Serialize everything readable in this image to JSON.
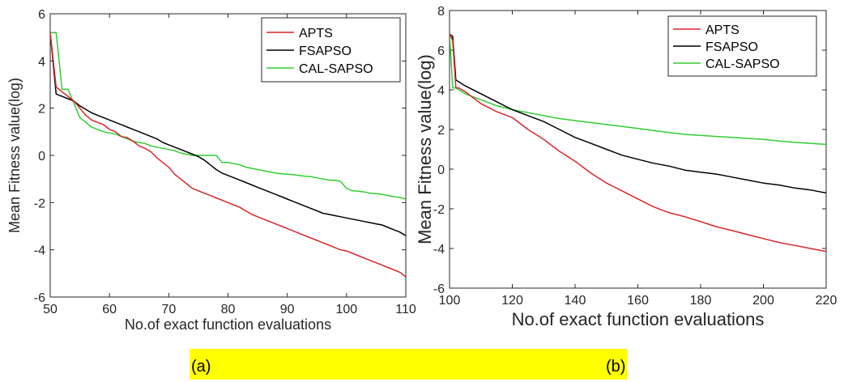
{
  "chart_data": [
    {
      "type": "line",
      "title": "",
      "xlabel": "No.of exact function evaluations",
      "ylabel": "Mean Fitness value(log)",
      "xlim": [
        50,
        110
      ],
      "ylim": [
        -6,
        6
      ],
      "xticks": [
        50,
        60,
        70,
        80,
        90,
        100,
        110
      ],
      "yticks": [
        -6,
        -4,
        -2,
        0,
        2,
        4,
        6
      ],
      "xtick_labels": [
        "50",
        "60",
        "70",
        "80",
        "90",
        "100",
        "110"
      ],
      "ytick_labels": [
        "-6",
        "-4",
        "-2",
        "0",
        "2",
        "4",
        "6"
      ],
      "grid": false,
      "legend_position": "top-right",
      "series": [
        {
          "name": "APTS",
          "color": "#d62728",
          "x": [
            50,
            51,
            52,
            53,
            54,
            55,
            56,
            57,
            58,
            59,
            60,
            61,
            62,
            63,
            64,
            65,
            66,
            67,
            68,
            69,
            70,
            71,
            72,
            73,
            74,
            75,
            76,
            77,
            78,
            79,
            80,
            81,
            82,
            83,
            84,
            85,
            86,
            87,
            88,
            89,
            90,
            91,
            92,
            93,
            94,
            95,
            96,
            97,
            98,
            99,
            100,
            101,
            102,
            103,
            104,
            105,
            106,
            107,
            108,
            109,
            110
          ],
          "y": [
            5.2,
            2.9,
            2.7,
            2.5,
            2.3,
            2.0,
            1.7,
            1.5,
            1.4,
            1.3,
            1.1,
            1.0,
            0.8,
            0.75,
            0.6,
            0.4,
            0.3,
            0.15,
            -0.1,
            -0.3,
            -0.5,
            -0.8,
            -1.0,
            -1.2,
            -1.4,
            -1.5,
            -1.6,
            -1.7,
            -1.8,
            -1.9,
            -2.0,
            -2.1,
            -2.2,
            -2.35,
            -2.5,
            -2.6,
            -2.7,
            -2.8,
            -2.9,
            -3.0,
            -3.1,
            -3.2,
            -3.3,
            -3.4,
            -3.5,
            -3.6,
            -3.7,
            -3.8,
            -3.9,
            -4.0,
            -4.05,
            -4.15,
            -4.25,
            -4.35,
            -4.45,
            -4.55,
            -4.65,
            -4.75,
            -4.85,
            -4.95,
            -5.15
          ]
        },
        {
          "name": "FSAPSO",
          "color": "#000000",
          "x": [
            50,
            51,
            52,
            53,
            54,
            55,
            56,
            57,
            58,
            59,
            60,
            61,
            62,
            63,
            64,
            65,
            66,
            67,
            68,
            69,
            70,
            71,
            72,
            73,
            74,
            75,
            76,
            77,
            78,
            79,
            80,
            81,
            82,
            83,
            84,
            85,
            86,
            87,
            88,
            89,
            90,
            91,
            92,
            93,
            94,
            95,
            96,
            97,
            98,
            99,
            100,
            101,
            102,
            103,
            104,
            105,
            106,
            107,
            108,
            109,
            110
          ],
          "y": [
            5.2,
            2.6,
            2.5,
            2.4,
            2.3,
            2.1,
            1.95,
            1.8,
            1.7,
            1.6,
            1.5,
            1.4,
            1.3,
            1.2,
            1.1,
            1.0,
            0.9,
            0.8,
            0.7,
            0.55,
            0.45,
            0.35,
            0.25,
            0.15,
            0.05,
            -0.05,
            -0.2,
            -0.4,
            -0.6,
            -0.75,
            -0.85,
            -0.95,
            -1.05,
            -1.15,
            -1.25,
            -1.35,
            -1.45,
            -1.55,
            -1.65,
            -1.75,
            -1.85,
            -1.95,
            -2.05,
            -2.15,
            -2.25,
            -2.35,
            -2.45,
            -2.5,
            -2.55,
            -2.6,
            -2.65,
            -2.7,
            -2.75,
            -2.8,
            -2.85,
            -2.9,
            -2.95,
            -3.05,
            -3.15,
            -3.25,
            -3.4
          ]
        },
        {
          "name": "CAL-SAPSO",
          "color": "#33cc33",
          "x": [
            50,
            51,
            52,
            53,
            54,
            55,
            56,
            57,
            58,
            59,
            60,
            61,
            62,
            63,
            64,
            65,
            66,
            67,
            68,
            69,
            70,
            71,
            72,
            73,
            74,
            75,
            76,
            77,
            78,
            79,
            80,
            81,
            82,
            83,
            84,
            85,
            86,
            87,
            88,
            89,
            90,
            91,
            92,
            93,
            94,
            95,
            96,
            97,
            98,
            99,
            100,
            101,
            102,
            103,
            104,
            105,
            106,
            107,
            108,
            109,
            110
          ],
          "y": [
            5.2,
            5.2,
            2.8,
            2.8,
            2.2,
            1.6,
            1.4,
            1.2,
            1.1,
            1.0,
            0.95,
            0.9,
            0.8,
            0.7,
            0.6,
            0.55,
            0.5,
            0.4,
            0.35,
            0.3,
            0.25,
            0.2,
            0.1,
            0.05,
            0.0,
            0.0,
            0.0,
            0.0,
            0.0,
            -0.3,
            -0.3,
            -0.35,
            -0.4,
            -0.5,
            -0.55,
            -0.6,
            -0.65,
            -0.7,
            -0.75,
            -0.78,
            -0.8,
            -0.82,
            -0.85,
            -0.88,
            -0.9,
            -0.95,
            -1.0,
            -1.05,
            -1.05,
            -1.1,
            -1.4,
            -1.5,
            -1.52,
            -1.55,
            -1.6,
            -1.62,
            -1.65,
            -1.7,
            -1.75,
            -1.78,
            -1.85
          ]
        }
      ]
    },
    {
      "type": "line",
      "title": "",
      "xlabel": "No.of exact function evaluations",
      "ylabel": "Mean Fitness value(log)",
      "xlim": [
        100,
        220
      ],
      "ylim": [
        -6,
        8
      ],
      "xticks": [
        100,
        120,
        140,
        160,
        180,
        200,
        220
      ],
      "yticks": [
        -6,
        -4,
        -2,
        0,
        2,
        4,
        6,
        8
      ],
      "xtick_labels": [
        "100",
        "120",
        "140",
        "160",
        "180",
        "200",
        "220"
      ],
      "ytick_labels": [
        "-6",
        "-4",
        "-2",
        "0",
        "2",
        "4",
        "6",
        "8"
      ],
      "grid": false,
      "legend_position": "top-right",
      "series": [
        {
          "name": "APTS",
          "color": "#d62728",
          "x": [
            100,
            101,
            102,
            103,
            105,
            110,
            115,
            120,
            125,
            130,
            135,
            140,
            145,
            150,
            155,
            160,
            165,
            170,
            175,
            180,
            185,
            190,
            195,
            200,
            205,
            210,
            215,
            220
          ],
          "y": [
            6.8,
            6.5,
            4.1,
            4.1,
            3.9,
            3.3,
            2.9,
            2.6,
            2.0,
            1.5,
            0.9,
            0.4,
            -0.2,
            -0.7,
            -1.1,
            -1.5,
            -1.9,
            -2.2,
            -2.4,
            -2.65,
            -2.9,
            -3.1,
            -3.3,
            -3.5,
            -3.7,
            -3.85,
            -4.0,
            -4.15
          ]
        },
        {
          "name": "FSAPSO",
          "color": "#000000",
          "x": [
            100,
            101,
            102,
            103,
            105,
            110,
            115,
            120,
            125,
            130,
            135,
            140,
            145,
            150,
            155,
            160,
            165,
            170,
            175,
            180,
            185,
            190,
            195,
            200,
            205,
            210,
            215,
            220
          ],
          "y": [
            6.8,
            6.7,
            4.5,
            4.4,
            4.2,
            3.8,
            3.4,
            3.0,
            2.7,
            2.4,
            2.0,
            1.6,
            1.3,
            1.0,
            0.7,
            0.5,
            0.3,
            0.15,
            -0.05,
            -0.15,
            -0.25,
            -0.4,
            -0.55,
            -0.7,
            -0.8,
            -0.95,
            -1.05,
            -1.2
          ]
        },
        {
          "name": "CAL-SAPSO",
          "color": "#33cc33",
          "x": [
            100,
            101,
            102,
            103,
            105,
            110,
            115,
            120,
            125,
            130,
            135,
            140,
            145,
            150,
            155,
            160,
            165,
            170,
            175,
            180,
            185,
            190,
            195,
            200,
            205,
            210,
            215,
            220
          ],
          "y": [
            6.8,
            4.1,
            4.1,
            4.0,
            3.8,
            3.5,
            3.2,
            3.0,
            2.85,
            2.7,
            2.55,
            2.45,
            2.35,
            2.25,
            2.15,
            2.05,
            1.95,
            1.85,
            1.75,
            1.7,
            1.65,
            1.6,
            1.55,
            1.5,
            1.42,
            1.35,
            1.3,
            1.25
          ]
        }
      ]
    }
  ],
  "captions": {
    "a": "(a)",
    "b": "(b)"
  }
}
